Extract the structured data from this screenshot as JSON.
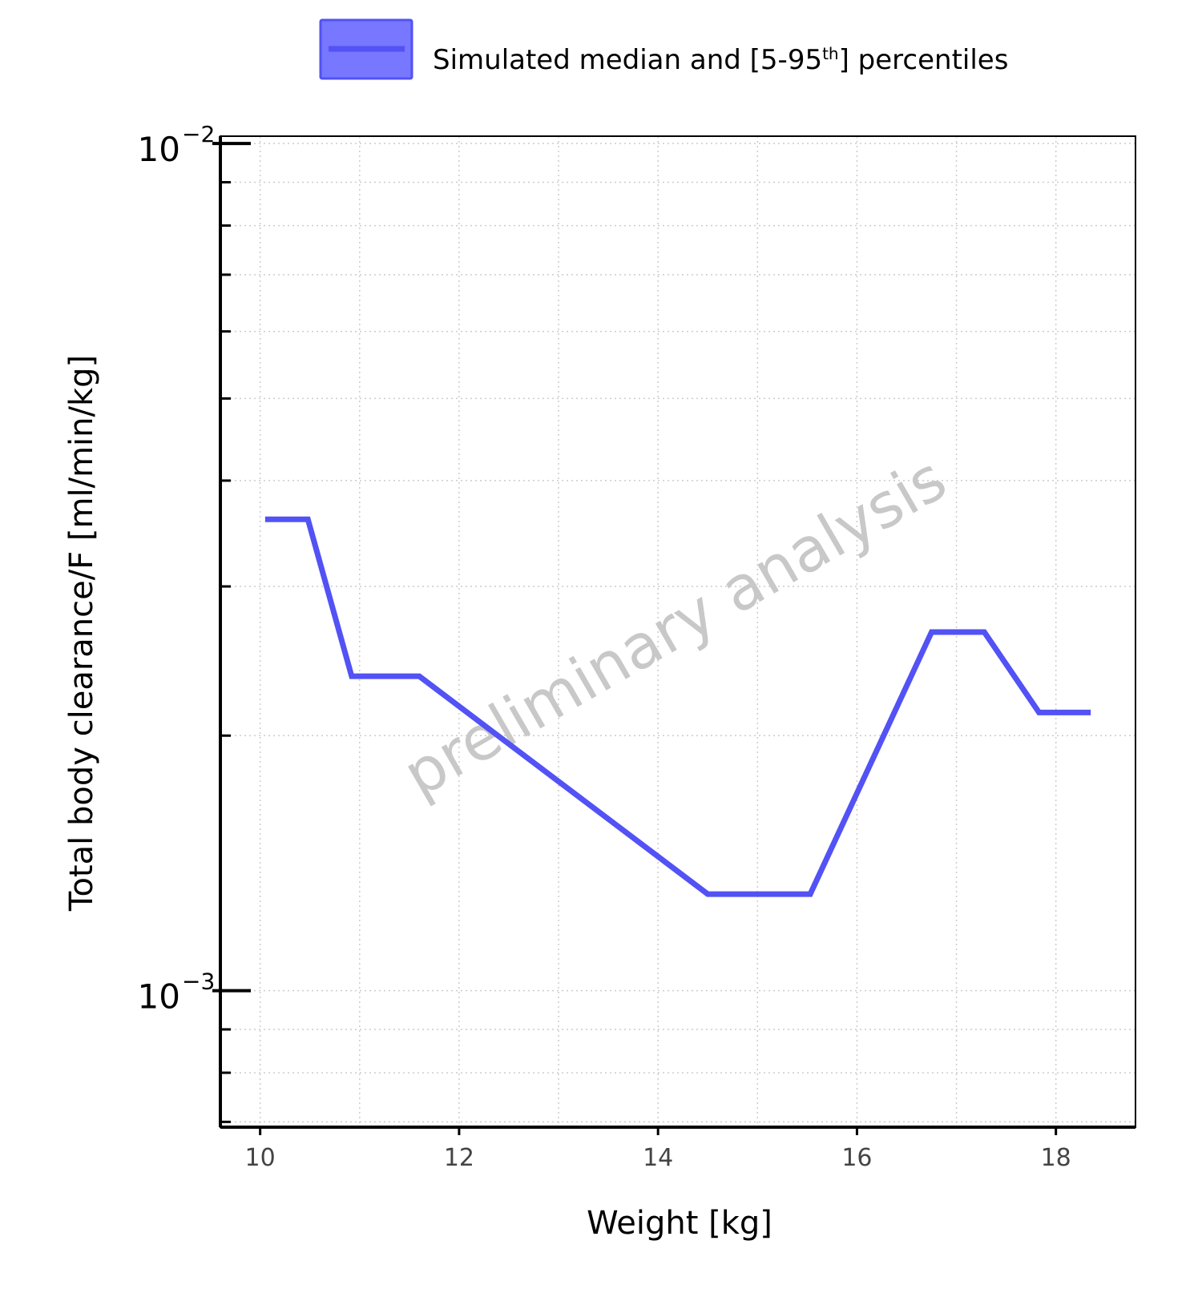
{
  "chart_data": {
    "type": "line",
    "xlabel": "Weight [kg]",
    "ylabel": "Total body clearance/F [ml/min/kg]",
    "yscale": "log",
    "xlim": [
      9.6,
      18.8
    ],
    "ylim": [
      0.00069,
      0.0102
    ],
    "grid": true,
    "legend_position": "top-center",
    "legend": {
      "label_main": "Simulated median and [5-95",
      "label_sup": "th",
      "label_end": "] percentiles"
    },
    "watermark": "preliminary analysis",
    "x_ticks": [
      {
        "value": 10,
        "label": "10"
      },
      {
        "value": 12,
        "label": "12"
      },
      {
        "value": 14,
        "label": "14"
      },
      {
        "value": 16,
        "label": "16"
      },
      {
        "value": 18,
        "label": "18"
      }
    ],
    "y_major_ticks": [
      {
        "value": 0.01,
        "base": "10",
        "exp": "−2"
      },
      {
        "value": 0.001,
        "base": "10",
        "exp": "−3"
      }
    ],
    "y_minor_ticks": [
      0.0007,
      0.0008,
      0.0009,
      0.002,
      0.003,
      0.004,
      0.005,
      0.006,
      0.007,
      0.008,
      0.009
    ],
    "series": [
      {
        "name": "Simulated median and [5-95th] percentiles",
        "color": "#5252f5",
        "band_fill": "#7777ff",
        "x": [
          10.05,
          10.48,
          10.92,
          11.6,
          14.5,
          15.53,
          16.75,
          17.28,
          17.83,
          18.35
        ],
        "y": [
          0.0036,
          0.0036,
          0.00235,
          0.00235,
          0.0013,
          0.0013,
          0.00265,
          0.00265,
          0.00213,
          0.00213
        ]
      }
    ],
    "colors": {
      "axis": "#000000",
      "grid": "#cccccc",
      "tick_label": "#444444",
      "watermark": "#c8c8c8"
    }
  }
}
